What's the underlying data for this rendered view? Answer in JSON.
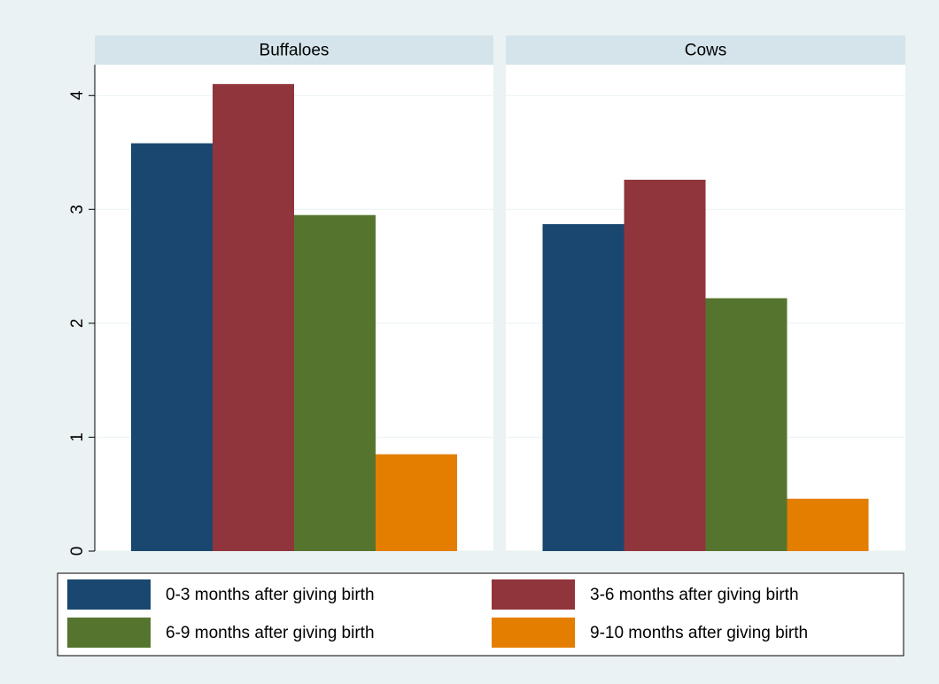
{
  "chart_data": {
    "type": "bar",
    "categories": [
      "Buffaloes",
      "Cows"
    ],
    "series": [
      {
        "name": "0-3 months after giving birth",
        "color": "#1a476f",
        "values": [
          3.58,
          2.87
        ]
      },
      {
        "name": "3-6 months after giving birth",
        "color": "#90353b",
        "values": [
          4.1,
          3.26
        ]
      },
      {
        "name": "6-9 months after giving birth",
        "color": "#55752f",
        "values": [
          2.95,
          2.22
        ]
      },
      {
        "name": "9-10 months after giving birth",
        "color": "#e37e00",
        "values": [
          0.85,
          0.46
        ]
      }
    ],
    "ylim": [
      0,
      4.27
    ],
    "yticks": [
      0,
      1,
      2,
      3,
      4
    ],
    "grid": true
  }
}
